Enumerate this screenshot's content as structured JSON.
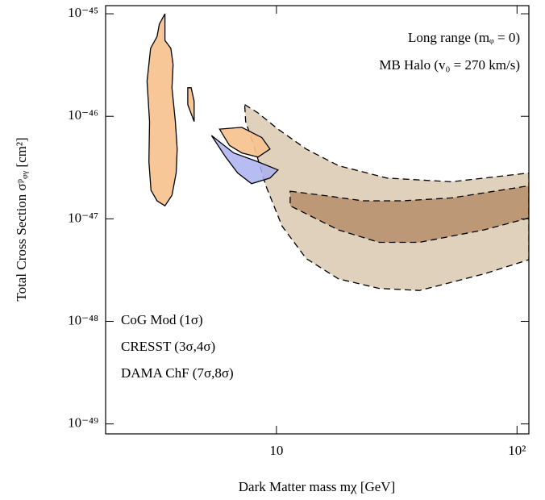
{
  "chart_data": {
    "type": "region",
    "x_label": "Dark Matter mass   mχ  [GeV]",
    "y_label": "Total Cross Section   σᵖᵩᵧ [cm²]",
    "log_x": true,
    "log_y": true,
    "xlim": [
      1.95,
      112
    ],
    "ylim": [
      8e-50,
      1.2e-45
    ],
    "xticks": [
      10,
      {
        "value": 100,
        "label": "10²"
      }
    ],
    "yticks": [
      {
        "value": 1e-49,
        "label": "10⁻⁴⁹"
      },
      {
        "value": 1e-48,
        "label": "10⁻⁴⁸"
      },
      {
        "value": 1e-47,
        "label": "10⁻⁴⁷"
      },
      {
        "value": 1e-46,
        "label": "10⁻⁴⁶"
      },
      {
        "value": 1e-45,
        "label": "10⁻⁴⁵"
      }
    ],
    "annotations": [
      "Long  range (mᵩ = 0)",
      "MB Halo (v₀ = 270 km/s)"
    ],
    "series": [
      {
        "name": "CRESST  (3σ,4σ)",
        "color": "#a0704a",
        "outline": "dashed",
        "regions": [
          {
            "fill": "#ddcdb6",
            "x": [
              7.38,
              8.38,
              10.15,
              13.3,
              18.1,
              28.8,
              53.5,
              112,
              112,
              72.8,
              39.3,
              26.7,
              18.1,
              13.3,
              10.55,
              9.04,
              8.05,
              7.45
            ],
            "y": [
              1.3e-46,
              1.08e-46,
              7.5e-47,
              4.8e-47,
              3.3e-47,
              2.5e-47,
              2.3e-47,
              2.8e-47,
              4e-48,
              2.9e-48,
              2e-48,
              2.1e-48,
              2.6e-48,
              4.1e-48,
              8.5e-48,
              2.1e-47,
              5.2e-47,
              8.9e-47
            ]
          },
          {
            "fill": "#b89270",
            "x": [
              11.4,
              15.5,
              22.9,
              33.6,
              53.5,
              112,
              112,
              72.8,
              39.3,
              26.7,
              18.1,
              13.3,
              11.4
            ],
            "y": [
              1.86e-47,
              1.7e-47,
              1.5e-47,
              1.5e-47,
              1.6e-47,
              2.1e-47,
              1.02e-47,
              7.8e-48,
              5.9e-48,
              5.9e-48,
              7.8e-48,
              1.12e-47,
              1.34e-47
            ]
          }
        ]
      },
      {
        "name": "CoG Mod  (1σ)",
        "color": "#2020e0",
        "outline": "solid",
        "regions": [
          {
            "fill": "#aab0f0",
            "x": [
              5.37,
              6.64,
              8.38,
              10.15,
              9.4,
              7.88,
              6.9,
              6.15
            ],
            "y": [
              6.5e-47,
              4.4e-47,
              3.6e-47,
              3e-47,
              2.5e-47,
              2.2e-47,
              2.8e-47,
              4e-47
            ]
          }
        ]
      },
      {
        "name": "DAMA ChF (7σ,8σ)",
        "color": "#f08c20",
        "outline": "solid",
        "regions": [
          {
            "fill": "#f7c28e",
            "x": [
              3.26,
              3.44,
              3.44,
              3.64,
              3.72,
              3.68,
              3.8,
              3.87,
              3.83,
              3.68,
              3.44,
              3.19,
              3.01,
              2.95,
              2.97,
              2.9,
              3.0,
              3.19,
              null,
              4.28,
              4.42,
              4.55,
              4.55,
              4.28,
              null,
              5.8,
              7.18,
              8.7,
              9.4,
              8.38,
              7.18,
              6.38
            ],
            "y": [
              7.9e-46,
              1e-45,
              5.5e-46,
              4.6e-46,
              3.2e-46,
              1.9e-46,
              8.9e-47,
              4.8e-47,
              2.8e-47,
              1.7e-47,
              1.34e-47,
              1.5e-47,
              1.9e-47,
              3.6e-47,
              8.9e-47,
              2.2e-46,
              4.6e-46,
              6e-46,
              null,
              1.9e-46,
              1.9e-46,
              1.4e-46,
              8.9e-47,
              1.3e-46,
              null,
              7.5e-47,
              7.8e-47,
              6.2e-47,
              4.8e-47,
              4e-47,
              4.4e-47,
              5.2e-47
            ]
          }
        ]
      }
    ],
    "legend_order": [
      1,
      0,
      2
    ]
  }
}
